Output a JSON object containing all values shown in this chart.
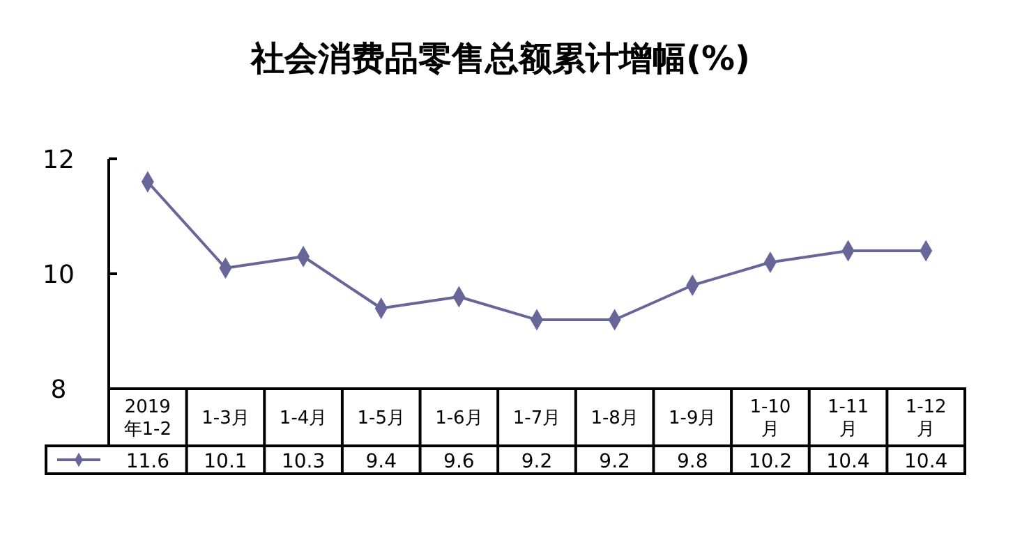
{
  "chart_data": {
    "type": "line",
    "title": "社会消费品零售总额累计增幅(%)",
    "categories": [
      "2019年1-2",
      "1-3月",
      "1-4月",
      "1-5月",
      "1-6月",
      "1-7月",
      "1-8月",
      "1-9月",
      "1-10月",
      "1-11月",
      "1-12月"
    ],
    "series": [
      {
        "color": "#666699",
        "values": [
          11.6,
          10.1,
          10.3,
          9.4,
          9.6,
          9.2,
          9.2,
          9.8,
          10.2,
          10.4,
          10.4
        ]
      }
    ],
    "ylim": [
      8,
      12
    ],
    "yticks": [
      8,
      10,
      12
    ],
    "grid": false,
    "marker": "diamond",
    "line_style": "solid",
    "data_labels": true
  }
}
